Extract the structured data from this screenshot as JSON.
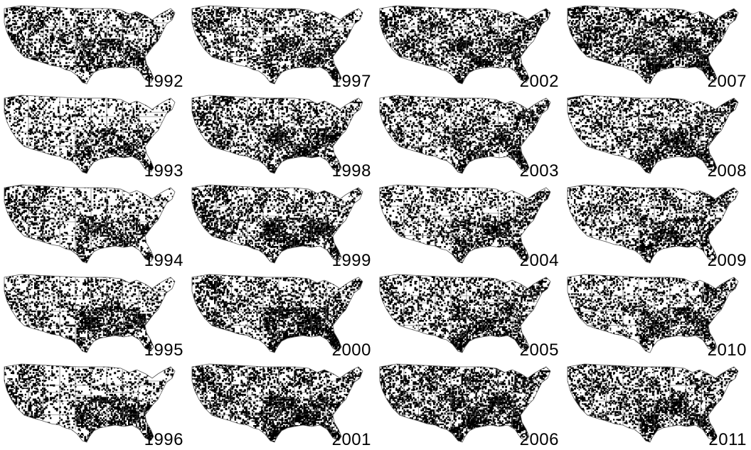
{
  "figure": {
    "colors": {
      "foreground": "#000000",
      "background": "#ffffff",
      "state_border": "#555555"
    },
    "panels": [
      {
        "year": "1992",
        "density": {
          "west": 0.45,
          "midwest": 0.35,
          "south": 0.6,
          "northeast": 0.35
        }
      },
      {
        "year": "1993",
        "density": {
          "west": 0.3,
          "midwest": 0.25,
          "south": 0.55,
          "northeast": 0.25
        }
      },
      {
        "year": "1994",
        "density": {
          "west": 0.45,
          "midwest": 0.25,
          "south": 0.6,
          "northeast": 0.25
        }
      },
      {
        "year": "1995",
        "density": {
          "west": 0.35,
          "midwest": 0.3,
          "south": 0.65,
          "northeast": 0.25
        }
      },
      {
        "year": "1996",
        "density": {
          "west": 0.45,
          "midwest": 0.25,
          "south": 0.65,
          "northeast": 0.25
        }
      },
      {
        "year": "1997",
        "density": {
          "west": 0.5,
          "midwest": 0.35,
          "south": 0.6,
          "northeast": 0.35
        }
      },
      {
        "year": "1998",
        "density": {
          "west": 0.5,
          "midwest": 0.35,
          "south": 0.65,
          "northeast": 0.4
        }
      },
      {
        "year": "1999",
        "density": {
          "west": 0.5,
          "midwest": 0.35,
          "south": 0.7,
          "northeast": 0.4
        }
      },
      {
        "year": "2000",
        "density": {
          "west": 0.5,
          "midwest": 0.35,
          "south": 0.72,
          "northeast": 0.4
        }
      },
      {
        "year": "2001",
        "density": {
          "west": 0.5,
          "midwest": 0.4,
          "south": 0.7,
          "northeast": 0.4
        }
      },
      {
        "year": "2002",
        "density": {
          "west": 0.45,
          "midwest": 0.4,
          "south": 0.62,
          "northeast": 0.5
        }
      },
      {
        "year": "2003",
        "density": {
          "west": 0.4,
          "midwest": 0.35,
          "south": 0.6,
          "northeast": 0.5
        }
      },
      {
        "year": "2004",
        "density": {
          "west": 0.35,
          "midwest": 0.3,
          "south": 0.6,
          "northeast": 0.45
        }
      },
      {
        "year": "2005",
        "density": {
          "west": 0.35,
          "midwest": 0.35,
          "south": 0.65,
          "northeast": 0.5
        }
      },
      {
        "year": "2006",
        "density": {
          "west": 0.45,
          "midwest": 0.5,
          "south": 0.7,
          "northeast": 0.5
        }
      },
      {
        "year": "2007",
        "density": {
          "west": 0.5,
          "midwest": 0.45,
          "south": 0.7,
          "northeast": 0.55
        }
      },
      {
        "year": "2008",
        "density": {
          "west": 0.4,
          "midwest": 0.35,
          "south": 0.65,
          "northeast": 0.5
        }
      },
      {
        "year": "2009",
        "density": {
          "west": 0.35,
          "midwest": 0.35,
          "south": 0.6,
          "northeast": 0.45
        }
      },
      {
        "year": "2010",
        "density": {
          "west": 0.35,
          "midwest": 0.3,
          "south": 0.6,
          "northeast": 0.45
        }
      },
      {
        "year": "2011",
        "density": {
          "west": 0.4,
          "midwest": 0.35,
          "south": 0.62,
          "northeast": 0.45
        }
      }
    ]
  }
}
